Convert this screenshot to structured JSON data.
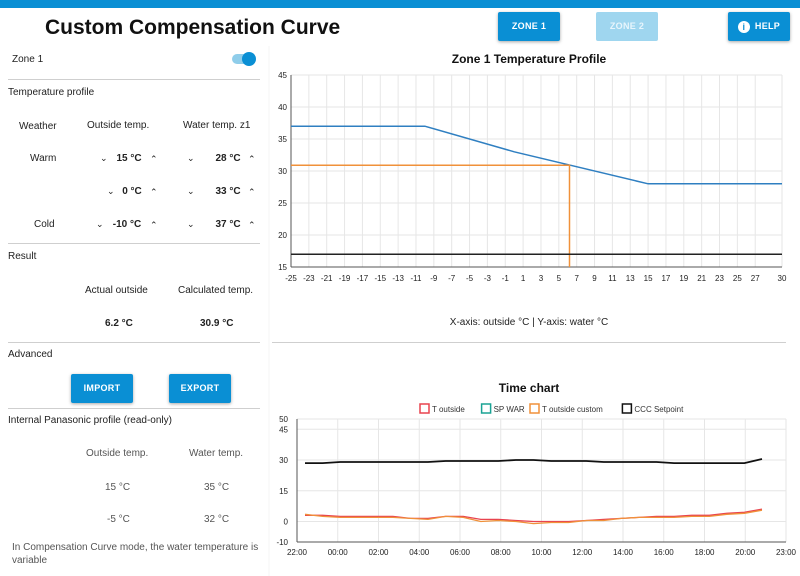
{
  "app": {
    "title": "Custom Compensation Curve",
    "buttons": {
      "zone1": "ZONE 1",
      "zone2": "ZONE 2",
      "help": "HELP"
    },
    "accent": "#0a8fd4"
  },
  "zone": {
    "label": "Zone 1",
    "enabled": true
  },
  "temperature_profile": {
    "heading": "Temperature profile",
    "col_weather": "Weather",
    "col_outside": "Outside temp.",
    "col_water": "Water temp. z1",
    "rows": [
      {
        "weather": "Warm",
        "outside": "15 °C",
        "water": "28 °C"
      },
      {
        "weather": "",
        "outside": "0 °C",
        "water": "33 °C"
      },
      {
        "weather": "Cold",
        "outside": "-10 °C",
        "water": "37 °C"
      }
    ]
  },
  "result": {
    "heading": "Result",
    "actual_label": "Actual outside",
    "calc_label": "Calculated temp.",
    "actual_value": "6.2 °C",
    "calc_value": "30.9 °C"
  },
  "advanced": {
    "heading": "Advanced",
    "import": "IMPORT",
    "export": "EXPORT"
  },
  "internal": {
    "heading": "Internal Panasonic profile (read-only)",
    "col_outside": "Outside temp.",
    "col_water": "Water temp.",
    "rows": [
      {
        "outside": "15 °C",
        "water": "35 °C"
      },
      {
        "outside": "-5 °C",
        "water": "32 °C"
      }
    ],
    "note": "In Compensation Curve mode, the water temperature is variable"
  },
  "chart_data": [
    {
      "type": "line",
      "title": "Zone 1 Temperature Profile",
      "caption": "X-axis: outside °C | Y-axis: water °C",
      "xlim": [
        -25,
        30
      ],
      "ylim": [
        15,
        45
      ],
      "xticks": [
        -25,
        -23,
        -21,
        -19,
        -17,
        -15,
        -13,
        -11,
        -9,
        -7,
        -5,
        -3,
        -1,
        1,
        3,
        5,
        7,
        9,
        11,
        13,
        15,
        17,
        19,
        21,
        23,
        25,
        27,
        30
      ],
      "yticks": [
        15,
        20,
        25,
        30,
        35,
        40,
        45
      ],
      "grid": true,
      "series": [
        {
          "color": "#2f7fc1",
          "points": [
            [
              -25,
              37
            ],
            [
              -10,
              37
            ],
            [
              0,
              33
            ],
            [
              15,
              28
            ],
            [
              30,
              28
            ]
          ]
        },
        {
          "color": "#f0913a",
          "points": [
            [
              -25,
              30.9
            ],
            [
              6.2,
              30.9
            ],
            [
              6.2,
              15
            ]
          ]
        },
        {
          "color": "#222222",
          "points": [
            [
              -25,
              17
            ],
            [
              30,
              17
            ]
          ]
        }
      ]
    },
    {
      "type": "line",
      "title": "Time chart",
      "legend": "top",
      "ylim": [
        -10,
        50
      ],
      "yticks": [
        -10,
        0,
        15,
        30,
        45,
        50
      ],
      "xticks": [
        "22:00",
        "00:00",
        "02:00",
        "04:00",
        "06:00",
        "08:00",
        "10:00",
        "12:00",
        "14:00",
        "16:00",
        "18:00",
        "20:00",
        "23:00"
      ],
      "grid": true,
      "series": [
        {
          "name": "T outside",
          "color": "#e8434f",
          "values": [
            3,
            3,
            2.5,
            2.5,
            2.5,
            2.5,
            1.5,
            1.5,
            2.5,
            2.5,
            1,
            1,
            0.5,
            0,
            0,
            0,
            0.5,
            1,
            1.5,
            2,
            2.5,
            2.5,
            3,
            3,
            4,
            4.5,
            6
          ]
        },
        {
          "name": "SP WAR",
          "color": "#1aa394",
          "values": []
        },
        {
          "name": "T outside custom",
          "color": "#f0913a",
          "values": [
            3.5,
            2.5,
            2,
            2,
            2,
            2,
            1.5,
            1,
            2.5,
            2,
            0,
            0.5,
            0,
            -1,
            -0.5,
            -0.5,
            0.5,
            0.5,
            1.5,
            2,
            2,
            2,
            2.5,
            2.5,
            3.5,
            4,
            5.5
          ]
        },
        {
          "name": "CCC Setpoint",
          "color": "#111111",
          "values": [
            28.5,
            28.5,
            29,
            29,
            29,
            29,
            29,
            29,
            29.5,
            29.5,
            29.5,
            29.5,
            30,
            30,
            29.5,
            29.5,
            29.5,
            29,
            29,
            29,
            29,
            28.5,
            28.5,
            28.5,
            28.5,
            28.5,
            30.5
          ]
        }
      ]
    }
  ]
}
